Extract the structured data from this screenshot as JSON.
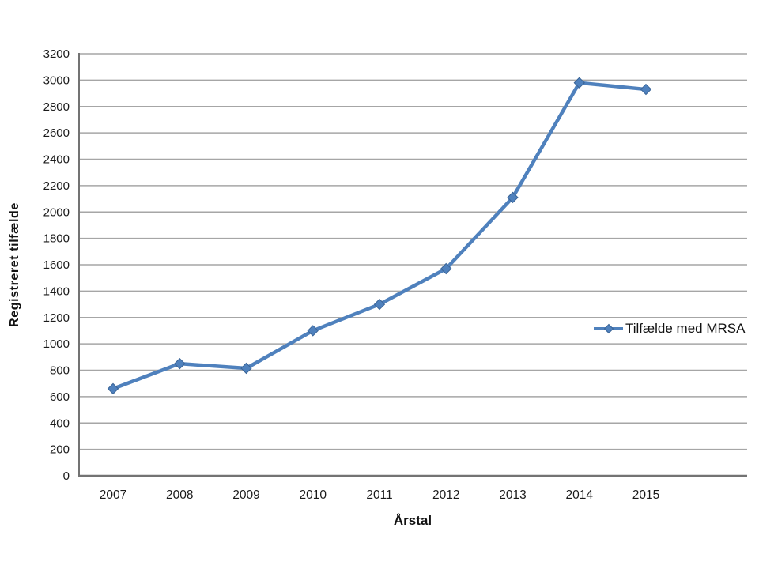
{
  "chart_data": {
    "type": "line",
    "title": "",
    "xlabel": "Årstal",
    "ylabel": "Registreret tilfælde",
    "categories": [
      "2007",
      "2008",
      "2009",
      "2010",
      "2011",
      "2012",
      "2013",
      "2014",
      "2015"
    ],
    "series": [
      {
        "name": "Tilfælde med MRSA",
        "values": [
          660,
          850,
          815,
          1100,
          1300,
          1570,
          2110,
          2980,
          2930
        ],
        "color": "#4F81BD",
        "marker": "diamond"
      }
    ],
    "ylim": [
      0,
      3200
    ],
    "ytick_step": 200,
    "grid": "horizontal",
    "grid_color": "#A6A6A6",
    "axis_color": "#737373",
    "tick_label_color": "#1a1a1a",
    "legend_position": "middle-right",
    "legend_border": "none"
  }
}
